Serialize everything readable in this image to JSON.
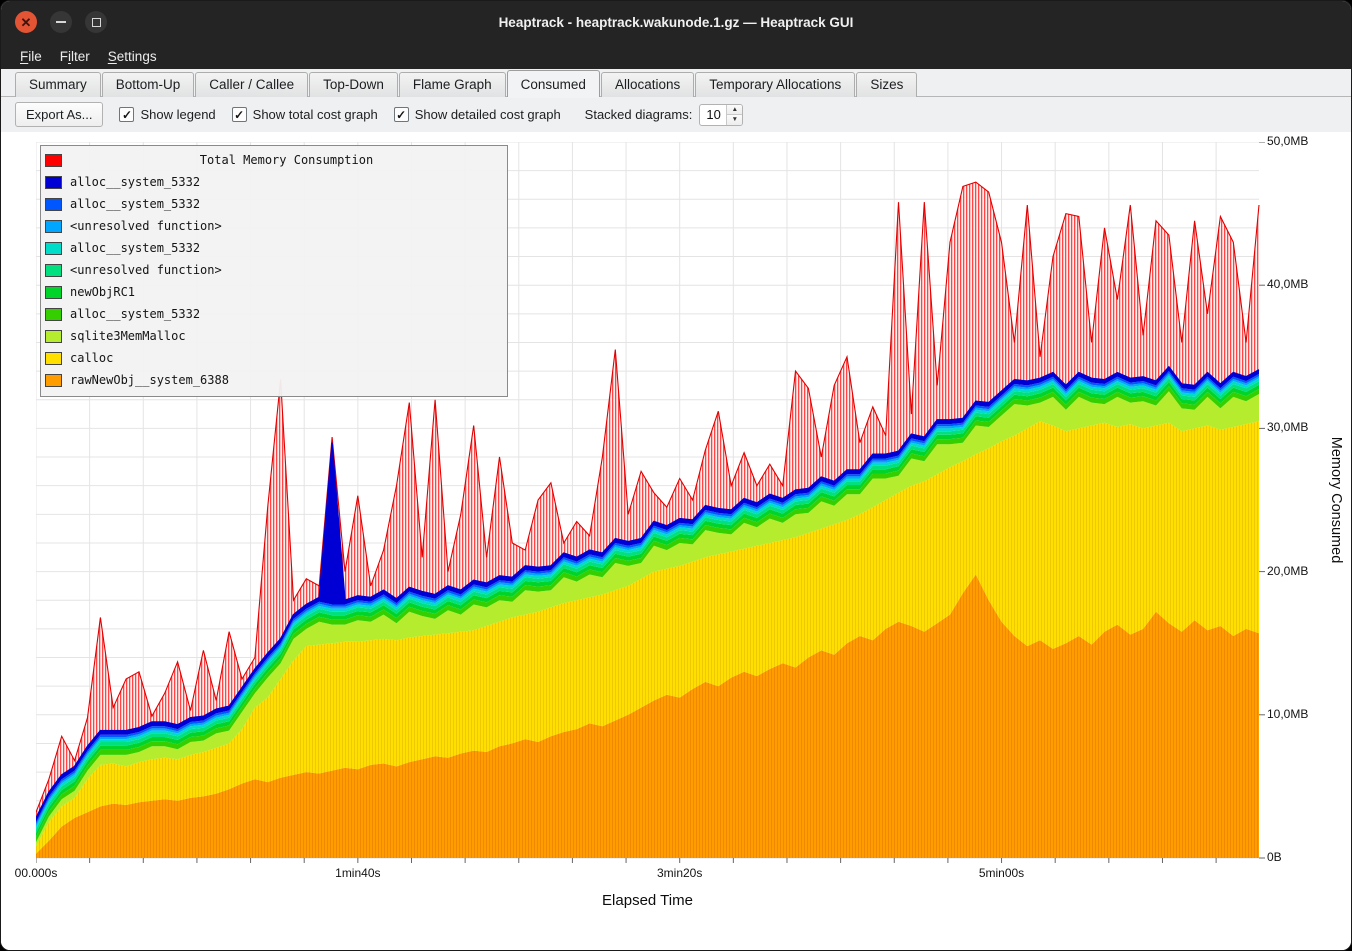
{
  "window": {
    "title": "Heaptrack - heaptrack.wakunode.1.gz — Heaptrack GUI"
  },
  "menubar": {
    "items": [
      {
        "label": "File",
        "mnemonic": "F"
      },
      {
        "label": "Filter",
        "mnemonic": "i"
      },
      {
        "label": "Settings",
        "mnemonic": "S"
      }
    ]
  },
  "tabs": [
    {
      "label": "Summary"
    },
    {
      "label": "Bottom-Up"
    },
    {
      "label": "Caller / Callee"
    },
    {
      "label": "Top-Down"
    },
    {
      "label": "Flame Graph"
    },
    {
      "label": "Consumed",
      "active": true
    },
    {
      "label": "Allocations"
    },
    {
      "label": "Temporary Allocations"
    },
    {
      "label": "Sizes"
    }
  ],
  "toolbar": {
    "export_button": "Export As...",
    "checkboxes": [
      {
        "label": "Show legend",
        "checked": true
      },
      {
        "label": "Show total cost graph",
        "checked": true
      },
      {
        "label": "Show detailed cost graph",
        "checked": true
      }
    ],
    "check_glyph": "✓",
    "stacked_label": "Stacked diagrams:",
    "stacked_value": "10"
  },
  "chart_data": {
    "type": "area",
    "title": "Total Memory Consumption",
    "xlabel": "Elapsed Time",
    "ylabel": "Memory Consumed",
    "x_max_seconds": 380,
    "y_max_mb": 50,
    "grid_step_seconds": 16.667,
    "grid_step_mb": 2,
    "x_ticks": [
      {
        "s": 0,
        "label": "00.000s"
      },
      {
        "s": 100,
        "label": "1min40s"
      },
      {
        "s": 200,
        "label": "3min20s"
      },
      {
        "s": 300,
        "label": "5min00s"
      }
    ],
    "y_ticks": [
      {
        "mb": 0,
        "label": "0B"
      },
      {
        "mb": 10,
        "label": "10,0MB"
      },
      {
        "mb": 20,
        "label": "20,0MB"
      },
      {
        "mb": 30,
        "label": "30,0MB"
      },
      {
        "mb": 40,
        "label": "40,0MB"
      },
      {
        "mb": 50,
        "label": "50,0MB"
      }
    ],
    "stack": [
      {
        "label": "rawNewObj__system_6388",
        "color": "#ff9d00",
        "values": [
          0.3,
          1.2,
          2.2,
          2.8,
          3.2,
          3.6,
          3.8,
          3.7,
          3.9,
          4.0,
          4.1,
          4.0,
          4.2,
          4.3,
          4.5,
          4.8,
          5.2,
          5.5,
          5.3,
          5.6,
          5.8,
          6.0,
          5.9,
          6.1,
          6.3,
          6.2,
          6.5,
          6.6,
          6.4,
          6.7,
          6.9,
          7.1,
          7.0,
          7.3,
          7.5,
          7.4,
          7.8,
          8.0,
          8.3,
          8.1,
          8.5,
          8.8,
          9.0,
          9.4,
          9.2,
          9.6,
          10.0,
          10.5,
          11.0,
          11.4,
          11.2,
          11.8,
          12.3,
          12.0,
          12.6,
          13.0,
          12.7,
          13.2,
          13.6,
          13.3,
          14.0,
          14.5,
          14.2,
          15.0,
          15.5,
          15.2,
          16.0,
          16.5,
          16.2,
          15.8,
          16.4,
          17.0,
          18.5,
          19.8,
          18.0,
          16.5,
          15.5,
          14.8,
          15.2,
          14.6,
          15.0,
          15.5,
          14.9,
          15.8,
          16.3,
          15.6,
          16.0,
          17.2,
          16.4,
          15.8,
          16.6,
          15.9,
          16.2,
          15.5,
          16.0,
          15.7
        ]
      },
      {
        "label": "calloc",
        "color": "#ffdf00",
        "values": [
          0.5,
          1.3,
          1.4,
          1.4,
          2.3,
          2.9,
          2.8,
          2.7,
          2.8,
          2.9,
          2.9,
          2.9,
          3.0,
          3.1,
          3.2,
          3.2,
          3.8,
          5.0,
          5.9,
          6.9,
          8.0,
          8.8,
          9.0,
          8.9,
          8.8,
          8.9,
          8.7,
          8.7,
          8.8,
          8.7,
          8.6,
          8.5,
          8.7,
          8.5,
          8.4,
          8.8,
          8.7,
          8.8,
          8.7,
          9.1,
          9.0,
          9.0,
          9.0,
          8.8,
          9.2,
          9.1,
          9.0,
          9.0,
          9.0,
          8.8,
          9.2,
          8.9,
          8.7,
          9.2,
          8.8,
          8.6,
          9.1,
          8.8,
          8.6,
          9.1,
          8.7,
          8.5,
          9.1,
          8.6,
          8.5,
          9.3,
          9.0,
          9.0,
          9.8,
          10.5,
          10.4,
          10.3,
          9.2,
          8.4,
          10.6,
          12.6,
          14.0,
          15.2,
          15.3,
          15.6,
          14.8,
          14.5,
          15.3,
          14.6,
          13.8,
          14.7,
          14.0,
          13.0,
          14.0,
          14.0,
          13.4,
          14.3,
          13.7,
          14.6,
          14.3,
          14.8
        ]
      },
      {
        "label": "sqlite3MemMalloc",
        "color": "#b5ec2e",
        "values": [
          0.3,
          0.4,
          0.5,
          0.5,
          0.6,
          0.7,
          0.6,
          0.8,
          0.7,
          0.9,
          0.8,
          0.7,
          0.9,
          0.8,
          1.0,
          0.9,
          1.2,
          1.0,
          1.4,
          1.1,
          1.5,
          1.2,
          1.6,
          1.3,
          1.2,
          1.5,
          1.3,
          1.7,
          1.2,
          1.8,
          1.4,
          1.1,
          1.6,
          1.2,
          1.8,
          1.3,
          1.5,
          1.1,
          1.7,
          1.4,
          1.2,
          1.8,
          1.3,
          1.6,
          1.2,
          1.9,
          1.4,
          1.1,
          1.8,
          1.3,
          1.6,
          1.2,
          1.9,
          1.5,
          1.2,
          1.8,
          1.3,
          1.7,
          1.2,
          1.6,
          1.4,
          1.9,
          1.3,
          1.8,
          1.4,
          2.0,
          1.5,
          1.2,
          1.9,
          1.4,
          2.1,
          1.6,
          1.3,
          2.0,
          1.5,
          1.8,
          2.2,
          1.6,
          1.3,
          2.0,
          1.5,
          2.2,
          1.6,
          1.3,
          2.1,
          1.5,
          1.9,
          1.4,
          2.2,
          1.6,
          1.3,
          2.0,
          1.5,
          2.1,
          1.6,
          1.9
        ]
      },
      {
        "label": "alloc__system_5332",
        "color": "#35cf00",
        "band_mb": 0.35
      },
      {
        "label": "newObjRC1",
        "color": "#00d42a",
        "band_mb": 0.3
      },
      {
        "label": "<unresolved function>",
        "color": "#00e07f",
        "band_mb": 0.25
      },
      {
        "label": "alloc__system_5332",
        "color": "#00dcc8",
        "band_mb": 0.2
      },
      {
        "label": "<unresolved function>",
        "color": "#00a6ff",
        "band_mb": 0.15
      },
      {
        "label": "alloc__system_5332",
        "color": "#0057ff",
        "band_mb": 0.15
      },
      {
        "label": "alloc__system_5332",
        "color": "#0000d5",
        "band_mb": 0.3,
        "spike_index": 23,
        "spike_mb": 11
      }
    ],
    "total": {
      "label": "Total Memory Consumption",
      "color": "#ff0000",
      "values": [
        3.2,
        5.5,
        8.5,
        6.8,
        9.8,
        16.8,
        10.5,
        12.5,
        13.0,
        9.9,
        11.5,
        13.7,
        10.3,
        14.5,
        11.0,
        15.8,
        12.5,
        14.0,
        24.5,
        33.4,
        18.0,
        19.5,
        19.0,
        29.4,
        20.0,
        25.3,
        19.0,
        21.5,
        26.0,
        31.8,
        21.0,
        32.0,
        20.0,
        24.0,
        30.2,
        21.0,
        28.0,
        22.0,
        21.5,
        25.0,
        26.2,
        22.0,
        23.5,
        22.5,
        28.0,
        35.5,
        24.0,
        27.0,
        25.5,
        24.5,
        26.5,
        25.0,
        28.5,
        31.2,
        26.0,
        28.3,
        26.0,
        27.5,
        26.0,
        34.0,
        32.8,
        28.0,
        33.0,
        35.0,
        29.0,
        31.5,
        29.5,
        45.8,
        31.0,
        45.8,
        33.0,
        43.0,
        46.9,
        47.2,
        46.5,
        43.0,
        36.0,
        45.6,
        35.0,
        42.0,
        45.0,
        44.8,
        36.0,
        44.0,
        39.0,
        45.6,
        36.5,
        44.5,
        43.5,
        36.0,
        44.5,
        38.0,
        44.8,
        43.0,
        36.0,
        45.6
      ]
    }
  }
}
